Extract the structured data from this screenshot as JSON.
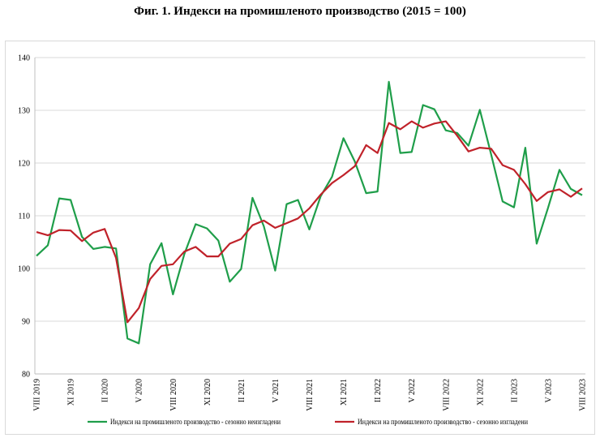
{
  "chart_data": {
    "type": "line",
    "title": "Фиг. 1. Индекси на промишленото производство (2015 = 100)",
    "xlabel": "",
    "ylabel": "",
    "ylim": [
      80,
      140
    ],
    "yticks": [
      80,
      90,
      100,
      110,
      120,
      130,
      140
    ],
    "grid": "horizontal",
    "legend_position": "bottom",
    "tick_labels": [
      {
        "index": 0,
        "label": "VIII 2019"
      },
      {
        "index": 3,
        "label": "XI 2019"
      },
      {
        "index": 6,
        "label": "II 2020"
      },
      {
        "index": 9,
        "label": "V 2020"
      },
      {
        "index": 12,
        "label": "VIII 2020"
      },
      {
        "index": 15,
        "label": "XI 2020"
      },
      {
        "index": 18,
        "label": "II 2021"
      },
      {
        "index": 21,
        "label": "V 2021"
      },
      {
        "index": 24,
        "label": "VIII 2021"
      },
      {
        "index": 27,
        "label": "XI 2021"
      },
      {
        "index": 30,
        "label": "II 2022"
      },
      {
        "index": 33,
        "label": "V 2022"
      },
      {
        "index": 36,
        "label": "VIII 2022"
      },
      {
        "index": 39,
        "label": "XI 2022"
      },
      {
        "index": 42,
        "label": "II 2023"
      },
      {
        "index": 45,
        "label": "V 2023"
      },
      {
        "index": 48,
        "label": "VIII 2023"
      }
    ],
    "series": [
      {
        "name": "Индекси на промишленото производство - сезонно неизгладени",
        "color": "#1f9e4a",
        "values": [
          102.4,
          104.4,
          113.3,
          113.0,
          106.0,
          103.7,
          104.1,
          103.8,
          86.7,
          85.8,
          100.8,
          104.8,
          95.1,
          102.7,
          108.4,
          107.6,
          105.3,
          97.5,
          99.9,
          113.4,
          108.0,
          99.6,
          112.2,
          113.0,
          107.4,
          113.7,
          117.4,
          124.7,
          120.3,
          114.3,
          114.6,
          135.4,
          121.9,
          122.1,
          131.0,
          130.2,
          126.2,
          125.7,
          123.3,
          130.1,
          121.6,
          112.7,
          111.6,
          122.9,
          104.7,
          111.5,
          118.7,
          115.1,
          113.9
        ]
      },
      {
        "name": "Индекси на промишленото производство - сезонно изгладени",
        "color": "#c0222a",
        "values": [
          106.9,
          106.3,
          107.3,
          107.2,
          105.2,
          106.8,
          107.5,
          102.0,
          89.8,
          92.5,
          98.0,
          100.5,
          100.8,
          103.2,
          104.1,
          102.3,
          102.3,
          104.7,
          105.6,
          108.2,
          109.1,
          107.7,
          108.6,
          109.5,
          111.4,
          114.0,
          116.2,
          117.7,
          119.4,
          123.4,
          121.9,
          127.6,
          126.4,
          127.9,
          126.7,
          127.5,
          127.9,
          125.2,
          122.2,
          122.9,
          122.7,
          119.6,
          118.7,
          116.0,
          112.8,
          114.5,
          115.0,
          113.6,
          115.2
        ]
      }
    ]
  }
}
